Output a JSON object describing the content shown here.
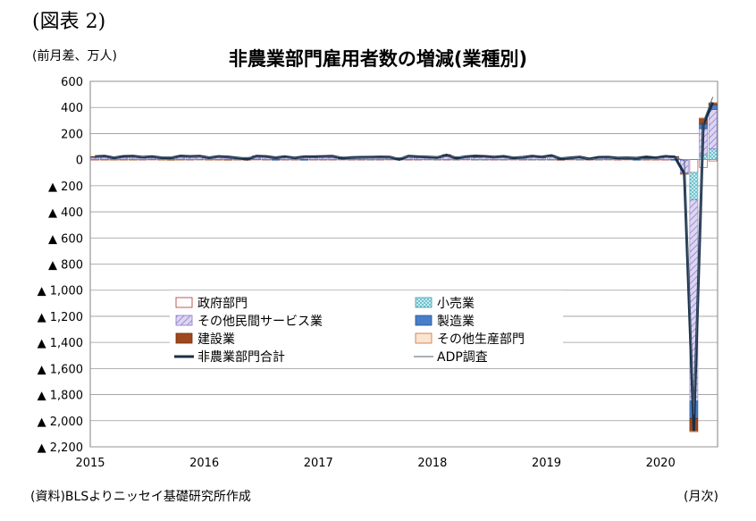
{
  "figure_label": "(図表 2)",
  "unit_label": "(前月差、万人)",
  "source": "(資料)BLSよりニッセイ基礎研究所作成",
  "x_unit": "(月次)",
  "chart_data": {
    "type": "bar",
    "stacked": true,
    "title": "非農業部門雇用者数の増減(業種別)",
    "ylim": [
      -2200,
      600
    ],
    "y_ticks": [
      600,
      400,
      200,
      0,
      -200,
      -400,
      -600,
      -800,
      -1000,
      -1200,
      -1400,
      -1600,
      -1800,
      -2000,
      -2200
    ],
    "y_tick_labels": [
      "600",
      "400",
      "200",
      "0",
      "▲ 200",
      "▲ 400",
      "▲ 600",
      "▲ 800",
      "▲ 1,000",
      "▲ 1,200",
      "▲ 1,400",
      "▲ 1,600",
      "▲ 1,800",
      "▲ 2,000",
      "▲ 2,200"
    ],
    "x_tick_labels": [
      "2015",
      "2016",
      "2017",
      "2018",
      "2019",
      "2020"
    ],
    "grid": true,
    "legend_position": "center-left",
    "x_start": "2015-01",
    "categories_note": "monthly, 2015-01 to 2020-06",
    "series": [
      {
        "name": "政府部門",
        "color": "#ffffff",
        "pattern": "red-outline",
        "values": [
          1,
          2,
          1,
          2,
          1,
          1,
          2,
          1,
          2,
          1,
          1,
          2,
          1,
          1,
          2,
          1,
          1,
          2,
          1,
          2,
          1,
          1,
          2,
          1,
          1,
          1,
          2,
          1,
          1,
          1,
          1,
          2,
          1,
          1,
          1,
          2,
          1,
          1,
          1,
          2,
          1,
          1,
          1,
          1,
          2,
          1,
          1,
          1,
          1,
          1,
          2,
          1,
          1,
          1,
          2,
          1,
          2,
          1,
          1,
          1,
          1,
          1,
          -1,
          -98,
          -59,
          -10
        ]
      },
      {
        "name": "小売業",
        "color": "#9ed8e0",
        "pattern": "dots",
        "values": [
          3,
          2,
          3,
          2,
          3,
          2,
          3,
          2,
          2,
          3,
          2,
          1,
          2,
          2,
          3,
          2,
          2,
          3,
          2,
          2,
          2,
          2,
          3,
          2,
          2,
          2,
          1,
          2,
          2,
          1,
          2,
          2,
          1,
          2,
          2,
          1,
          1,
          2,
          1,
          2,
          1,
          1,
          2,
          1,
          1,
          2,
          1,
          1,
          1,
          1,
          0,
          1,
          0,
          1,
          1,
          0,
          0,
          1,
          0,
          0,
          0,
          1,
          -4,
          -211,
          37,
          84
        ]
      },
      {
        "name": "その他民間サービス業",
        "color": "#c8c0e8",
        "pattern": "hatch",
        "values": [
          15,
          18,
          9,
          17,
          20,
          15,
          16,
          12,
          10,
          22,
          17,
          19,
          10,
          18,
          17,
          11,
          2,
          21,
          20,
          12,
          18,
          10,
          16,
          15,
          18,
          16,
          8,
          14,
          11,
          16,
          14,
          11,
          1,
          20,
          14,
          11,
          14,
          26,
          9,
          14,
          20,
          17,
          13,
          17,
          8,
          11,
          18,
          13,
          23,
          8,
          12,
          16,
          4,
          14,
          13,
          11,
          11,
          12,
          14,
          12,
          18,
          17,
          -100,
          -1540,
          200,
          300
        ]
      },
      {
        "name": "製造業",
        "color": "#4a7ec8",
        "pattern": "solid",
        "values": [
          2,
          2,
          1,
          1,
          1,
          0,
          1,
          1,
          -1,
          0,
          1,
          1,
          0,
          1,
          -1,
          0,
          -1,
          1,
          0,
          -1,
          0,
          0,
          -1,
          1,
          0,
          1,
          1,
          0,
          1,
          0,
          1,
          2,
          1,
          2,
          2,
          2,
          1,
          3,
          2,
          2,
          2,
          3,
          3,
          2,
          2,
          2,
          3,
          3,
          1,
          0,
          0,
          0,
          0,
          1,
          1,
          0,
          0,
          -4,
          5,
          0,
          2,
          -1,
          -2,
          -133,
          35,
          36
        ]
      },
      {
        "name": "建設業",
        "color": "#a0481c",
        "pattern": "solid",
        "values": [
          3,
          3,
          1,
          4,
          3,
          1,
          1,
          0,
          1,
          3,
          2,
          3,
          3,
          1,
          1,
          1,
          2,
          2,
          1,
          1,
          2,
          1,
          2,
          3,
          3,
          5,
          1,
          1,
          2,
          1,
          2,
          3,
          1,
          1,
          2,
          3,
          1,
          6,
          0,
          2,
          2,
          1,
          1,
          2,
          2,
          1,
          2,
          2,
          5,
          -3,
          2,
          3,
          0,
          1,
          1,
          1,
          1,
          1,
          1,
          1,
          4,
          4,
          -1,
          -98,
          46,
          16
        ]
      },
      {
        "name": "その他生産部門",
        "color": "#fbe4d0",
        "pattern": "red-outline",
        "values": [
          0,
          -1,
          -1,
          -1,
          -1,
          0,
          0,
          -1,
          -1,
          -1,
          0,
          0,
          -1,
          -1,
          -1,
          0,
          -1,
          0,
          0,
          0,
          0,
          0,
          0,
          0,
          0,
          1,
          1,
          0,
          1,
          0,
          0,
          1,
          1,
          0,
          0,
          1,
          0,
          1,
          1,
          0,
          1,
          1,
          1,
          1,
          0,
          1,
          1,
          1,
          0,
          0,
          0,
          0,
          0,
          0,
          0,
          0,
          0,
          0,
          0,
          0,
          0,
          0,
          -1,
          -5,
          1,
          1
        ]
      }
    ],
    "lines": [
      {
        "name": "非農業部門合計",
        "color": "#17304a",
        "width": 3,
        "values": [
          23,
          27,
          14,
          25,
          26,
          19,
          23,
          15,
          13,
          28,
          24,
          27,
          15,
          24,
          21,
          13,
          3,
          27,
          24,
          15,
          23,
          13,
          22,
          22,
          24,
          26,
          11,
          17,
          18,
          19,
          21,
          20,
          2,
          27,
          22,
          21,
          16,
          35,
          11,
          22,
          28,
          25,
          20,
          25,
          14,
          18,
          26,
          20,
          31,
          7,
          14,
          21,
          6,
          18,
          19,
          13,
          14,
          11,
          21,
          14,
          25,
          21,
          -107,
          -2069,
          269,
          438
        ]
      },
      {
        "name": "ADP調査",
        "color": "#506070",
        "width": 1,
        "values": [
          22,
          18,
          19,
          17,
          20,
          22,
          18,
          19,
          20,
          19,
          21,
          22,
          19,
          20,
          18,
          16,
          17,
          20,
          19,
          18,
          17,
          16,
          18,
          17,
          20,
          24,
          21,
          17,
          15,
          16,
          17,
          19,
          14,
          23,
          19,
          24,
          22,
          24,
          22,
          20,
          17,
          18,
          20,
          17,
          20,
          21,
          19,
          18,
          24,
          17,
          13,
          26,
          3,
          11,
          13,
          18,
          13,
          15,
          6,
          10,
          19,
          15,
          -5,
          -1950,
          290,
          480
        ]
      }
    ]
  }
}
